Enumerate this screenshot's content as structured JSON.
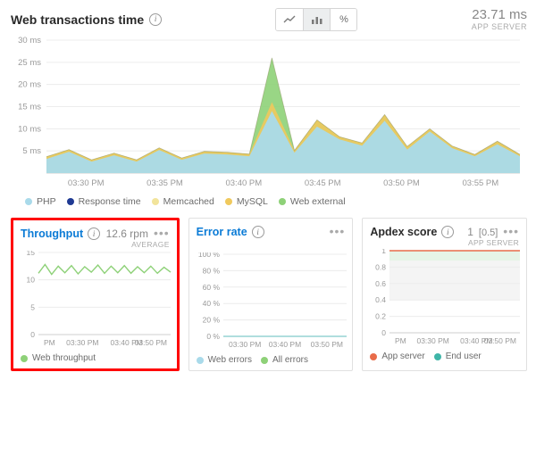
{
  "top": {
    "title": "Web transactions time",
    "buttons": {
      "line": "line-chart",
      "bar": "bar-chart",
      "pct": "%"
    },
    "stat_value": "23.71 ms",
    "stat_sub": "APP SERVER",
    "chart": {
      "type": "area-stacked",
      "background_color": "#ffffff",
      "grid_color": "#ececec",
      "y_axis": {
        "min": 0,
        "max": 30,
        "tick_step": 5,
        "unit": "ms",
        "ticks": [
          "5 ms",
          "10 ms",
          "15 ms",
          "20 ms",
          "25 ms",
          "30 ms"
        ]
      },
      "x_labels": [
        "03:30 PM",
        "03:35 PM",
        "03:40 PM",
        "03:45 PM",
        "03:50 PM",
        "03:55 PM"
      ],
      "series_php": [
        3.2,
        4.8,
        2.6,
        4.0,
        2.6,
        5.2,
        3.0,
        4.4,
        4.2,
        3.8,
        14,
        4.6,
        10.5,
        7.6,
        6.2,
        11.8,
        5.3,
        9.4,
        5.6,
        3.8,
        6.5,
        3.8
      ],
      "series_mysql": [
        3.7,
        5.3,
        3.0,
        4.5,
        3.0,
        5.7,
        3.4,
        4.9,
        4.7,
        4.3,
        16,
        5.1,
        12.0,
        8.2,
        6.8,
        13.2,
        6.0,
        10.0,
        6.1,
        4.2,
        7.2,
        4.2
      ],
      "series_webext": [
        3.7,
        5.3,
        3.0,
        4.5,
        3.0,
        5.7,
        3.4,
        4.9,
        4.7,
        4.3,
        26,
        5.1,
        12.0,
        8.2,
        6.8,
        13.2,
        6.0,
        10.0,
        6.1,
        4.2,
        7.2,
        4.2
      ],
      "colors": {
        "php": "#a9daea",
        "response_time": "#1f3a93",
        "memcached": "#f2e49b",
        "mysql": "#f0c95d",
        "webext": "#8ed178"
      },
      "legend": [
        {
          "label": "PHP",
          "color": "#a9daea"
        },
        {
          "label": "Response time",
          "color": "#1f3a93"
        },
        {
          "label": "Memcached",
          "color": "#f2e49b"
        },
        {
          "label": "MySQL",
          "color": "#f0c95d"
        },
        {
          "label": "Web external",
          "color": "#8ed178"
        }
      ]
    }
  },
  "cards": {
    "throughput": {
      "title": "Throughput",
      "stat_value": "12.6 rpm",
      "stat_sub": "AVERAGE",
      "highlight": true,
      "y_axis": {
        "min": 0,
        "max": 15,
        "tick_step": 5,
        "ticks": [
          "0",
          "5",
          "10",
          "15"
        ]
      },
      "x_labels": [
        "PM",
        "03:30 PM",
        "03:40 PM",
        "03:50 PM"
      ],
      "series": [
        11.2,
        12.8,
        11.0,
        12.5,
        11.3,
        12.6,
        11.1,
        12.4,
        11.4,
        12.7,
        11.2,
        12.5,
        11.3,
        12.6,
        11.2,
        12.4,
        11.3,
        12.5,
        11.2,
        12.3,
        11.4
      ],
      "color": "#8ed178",
      "legend": [
        {
          "label": "Web throughput",
          "color": "#8ed178"
        }
      ]
    },
    "error": {
      "title": "Error rate",
      "y_axis": {
        "min": 0,
        "max": 100,
        "tick_step": 20,
        "unit": "%",
        "ticks": [
          "0 %",
          "20 %",
          "40 %",
          "60 %",
          "80 %",
          "100 %"
        ]
      },
      "x_labels": [
        "03:30 PM",
        "03:40 PM",
        "03:50 PM"
      ],
      "series_web": [
        0,
        0,
        0,
        0,
        0,
        0,
        0,
        0,
        0,
        0,
        0
      ],
      "series_all": [
        0,
        0,
        0,
        0,
        0,
        0,
        0,
        0,
        0,
        0,
        0
      ],
      "colors": {
        "web": "#a9daea",
        "all": "#8ed178"
      },
      "legend": [
        {
          "label": "Web errors",
          "color": "#a9daea"
        },
        {
          "label": "All errors",
          "color": "#8ed178"
        }
      ]
    },
    "apdex": {
      "title": "Apdex score",
      "stat_value": "1",
      "stat_extra": "[0.5]",
      "stat_sub": "APP SERVER",
      "y_axis": {
        "min": 0,
        "max": 1,
        "tick_step": 0.2,
        "ticks": [
          "0",
          "0.2",
          "0.4",
          "0.6",
          "0.8",
          "1"
        ]
      },
      "x_labels": [
        "PM",
        "03:30 PM",
        "03:40 PM",
        "03:50 PM"
      ],
      "band_good": {
        "from": 0.88,
        "to": 1.0,
        "color": "#e6f4e6"
      },
      "band_warn": {
        "from": 0.4,
        "to": 0.88,
        "color": "#f4f4f4"
      },
      "series_app": [
        1,
        1,
        1,
        1,
        1,
        1,
        1,
        1,
        1,
        1,
        1
      ],
      "colors": {
        "app": "#e86c4a",
        "end": "#3fb5a8"
      },
      "legend": [
        {
          "label": "App server",
          "color": "#e86c4a"
        },
        {
          "label": "End user",
          "color": "#3fb5a8"
        }
      ]
    }
  }
}
